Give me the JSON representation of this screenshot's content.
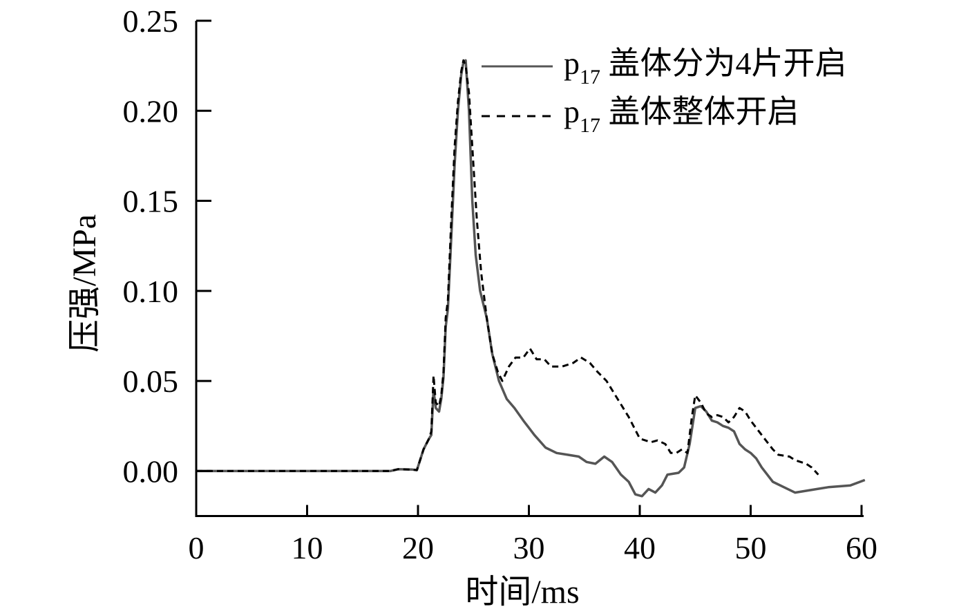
{
  "chart_data": {
    "type": "line",
    "title": "",
    "xlabel": "时间/ms",
    "ylabel": "压强/MPa",
    "xlim": [
      0,
      60
    ],
    "ylim": [
      -0.025,
      0.25
    ],
    "xticks": [
      0,
      10,
      20,
      30,
      40,
      50,
      60
    ],
    "xtick_labels": [
      "0",
      "10",
      "20",
      "30",
      "40",
      "50",
      "60"
    ],
    "yticks": [
      0.0,
      0.05,
      0.1,
      0.15,
      0.2,
      0.25
    ],
    "ytick_labels": [
      "0.00",
      "0.05",
      "0.10",
      "0.15",
      "0.20",
      "0.25"
    ],
    "grid": false,
    "legend_position": "top-right",
    "series": [
      {
        "name_main": "p",
        "name_sub": "17",
        "name_rest": " 盖体分为4片开启",
        "style": "solid",
        "color": "#555555",
        "points": [
          [
            0,
            0
          ],
          [
            17.5,
            0
          ],
          [
            18.2,
            0.001
          ],
          [
            19.5,
            0.0008
          ],
          [
            19.9,
            0.0005
          ],
          [
            20.5,
            0.012
          ],
          [
            21.0,
            0.018
          ],
          [
            21.2,
            0.02
          ],
          [
            21.4,
            0.045
          ],
          [
            21.6,
            0.035
          ],
          [
            21.9,
            0.033
          ],
          [
            22.1,
            0.04
          ],
          [
            22.3,
            0.052
          ],
          [
            22.5,
            0.08
          ],
          [
            22.7,
            0.09
          ],
          [
            23.0,
            0.13
          ],
          [
            23.3,
            0.17
          ],
          [
            23.6,
            0.2
          ],
          [
            23.9,
            0.22
          ],
          [
            24.1,
            0.227
          ],
          [
            24.3,
            0.228
          ],
          [
            24.6,
            0.2
          ],
          [
            24.9,
            0.15
          ],
          [
            25.2,
            0.12
          ],
          [
            25.6,
            0.1
          ],
          [
            26.2,
            0.085
          ],
          [
            26.7,
            0.065
          ],
          [
            27.3,
            0.05
          ],
          [
            28.0,
            0.04
          ],
          [
            28.7,
            0.035
          ],
          [
            29.5,
            0.028
          ],
          [
            30.5,
            0.02
          ],
          [
            31.5,
            0.013
          ],
          [
            32.5,
            0.01
          ],
          [
            33.5,
            0.009
          ],
          [
            34.5,
            0.008
          ],
          [
            35.2,
            0.005
          ],
          [
            36.0,
            0.004
          ],
          [
            36.8,
            0.008
          ],
          [
            37.5,
            0.005
          ],
          [
            38.3,
            -0.002
          ],
          [
            39.0,
            -0.006
          ],
          [
            39.6,
            -0.013
          ],
          [
            40.2,
            -0.014
          ],
          [
            40.8,
            -0.01
          ],
          [
            41.4,
            -0.012
          ],
          [
            42.0,
            -0.008
          ],
          [
            42.5,
            -0.002
          ],
          [
            43.5,
            -0.001
          ],
          [
            44.0,
            0.002
          ],
          [
            44.5,
            0.015
          ],
          [
            45.0,
            0.035
          ],
          [
            45.5,
            0.036
          ],
          [
            46.0,
            0.033
          ],
          [
            46.5,
            0.028
          ],
          [
            47.0,
            0.027
          ],
          [
            47.5,
            0.025
          ],
          [
            48.0,
            0.024
          ],
          [
            48.5,
            0.022
          ],
          [
            49.0,
            0.015
          ],
          [
            49.5,
            0.012
          ],
          [
            50.0,
            0.01
          ],
          [
            50.5,
            0.007
          ],
          [
            51.0,
            0.002
          ],
          [
            52.0,
            -0.006
          ],
          [
            53.0,
            -0.009
          ],
          [
            54.0,
            -0.012
          ],
          [
            55.0,
            -0.011
          ],
          [
            56.0,
            -0.01
          ],
          [
            57.0,
            -0.009
          ],
          [
            58.0,
            -0.0085
          ],
          [
            59.0,
            -0.008
          ],
          [
            60.3,
            -0.005
          ]
        ]
      },
      {
        "name_main": "p",
        "name_sub": "17",
        "name_rest": " 盖体整体开启",
        "style": "dashed",
        "color": "#000000",
        "points": [
          [
            0,
            0
          ],
          [
            17.5,
            0
          ],
          [
            18.2,
            0.001
          ],
          [
            19.5,
            0.0008
          ],
          [
            19.9,
            0.0005
          ],
          [
            20.5,
            0.012
          ],
          [
            21.0,
            0.018
          ],
          [
            21.2,
            0.022
          ],
          [
            21.4,
            0.053
          ],
          [
            21.6,
            0.038
          ],
          [
            21.9,
            0.036
          ],
          [
            22.1,
            0.042
          ],
          [
            22.3,
            0.055
          ],
          [
            22.5,
            0.085
          ],
          [
            22.7,
            0.095
          ],
          [
            23.0,
            0.14
          ],
          [
            23.3,
            0.18
          ],
          [
            23.6,
            0.205
          ],
          [
            23.9,
            0.222
          ],
          [
            24.1,
            0.228
          ],
          [
            24.3,
            0.225
          ],
          [
            24.6,
            0.21
          ],
          [
            24.9,
            0.18
          ],
          [
            25.3,
            0.14
          ],
          [
            25.7,
            0.11
          ],
          [
            26.2,
            0.085
          ],
          [
            26.7,
            0.065
          ],
          [
            27.2,
            0.055
          ],
          [
            27.6,
            0.05
          ],
          [
            28.2,
            0.058
          ],
          [
            28.8,
            0.063
          ],
          [
            29.5,
            0.063
          ],
          [
            30.1,
            0.068
          ],
          [
            30.7,
            0.062
          ],
          [
            31.4,
            0.062
          ],
          [
            32.0,
            0.058
          ],
          [
            33.0,
            0.058
          ],
          [
            34.0,
            0.06
          ],
          [
            34.7,
            0.063
          ],
          [
            35.5,
            0.06
          ],
          [
            36.2,
            0.055
          ],
          [
            37.0,
            0.05
          ],
          [
            38.0,
            0.04
          ],
          [
            39.0,
            0.03
          ],
          [
            40.0,
            0.018
          ],
          [
            41.0,
            0.016
          ],
          [
            41.6,
            0.017
          ],
          [
            42.3,
            0.015
          ],
          [
            42.8,
            0.01
          ],
          [
            43.3,
            0.01
          ],
          [
            43.8,
            0.012
          ],
          [
            44.3,
            0.01
          ],
          [
            44.7,
            0.03
          ],
          [
            45.0,
            0.042
          ],
          [
            45.5,
            0.038
          ],
          [
            46.0,
            0.032
          ],
          [
            46.5,
            0.03
          ],
          [
            47.0,
            0.031
          ],
          [
            47.5,
            0.03
          ],
          [
            48.0,
            0.027
          ],
          [
            48.5,
            0.03
          ],
          [
            49.0,
            0.035
          ],
          [
            49.5,
            0.033
          ],
          [
            50.0,
            0.028
          ],
          [
            51.0,
            0.02
          ],
          [
            52.0,
            0.012
          ],
          [
            52.5,
            0.009
          ],
          [
            53.5,
            0.008
          ],
          [
            54.0,
            0.006
          ],
          [
            55.0,
            0.004
          ],
          [
            55.5,
            0.002
          ],
          [
            56.1,
            -0.002
          ]
        ]
      }
    ]
  }
}
